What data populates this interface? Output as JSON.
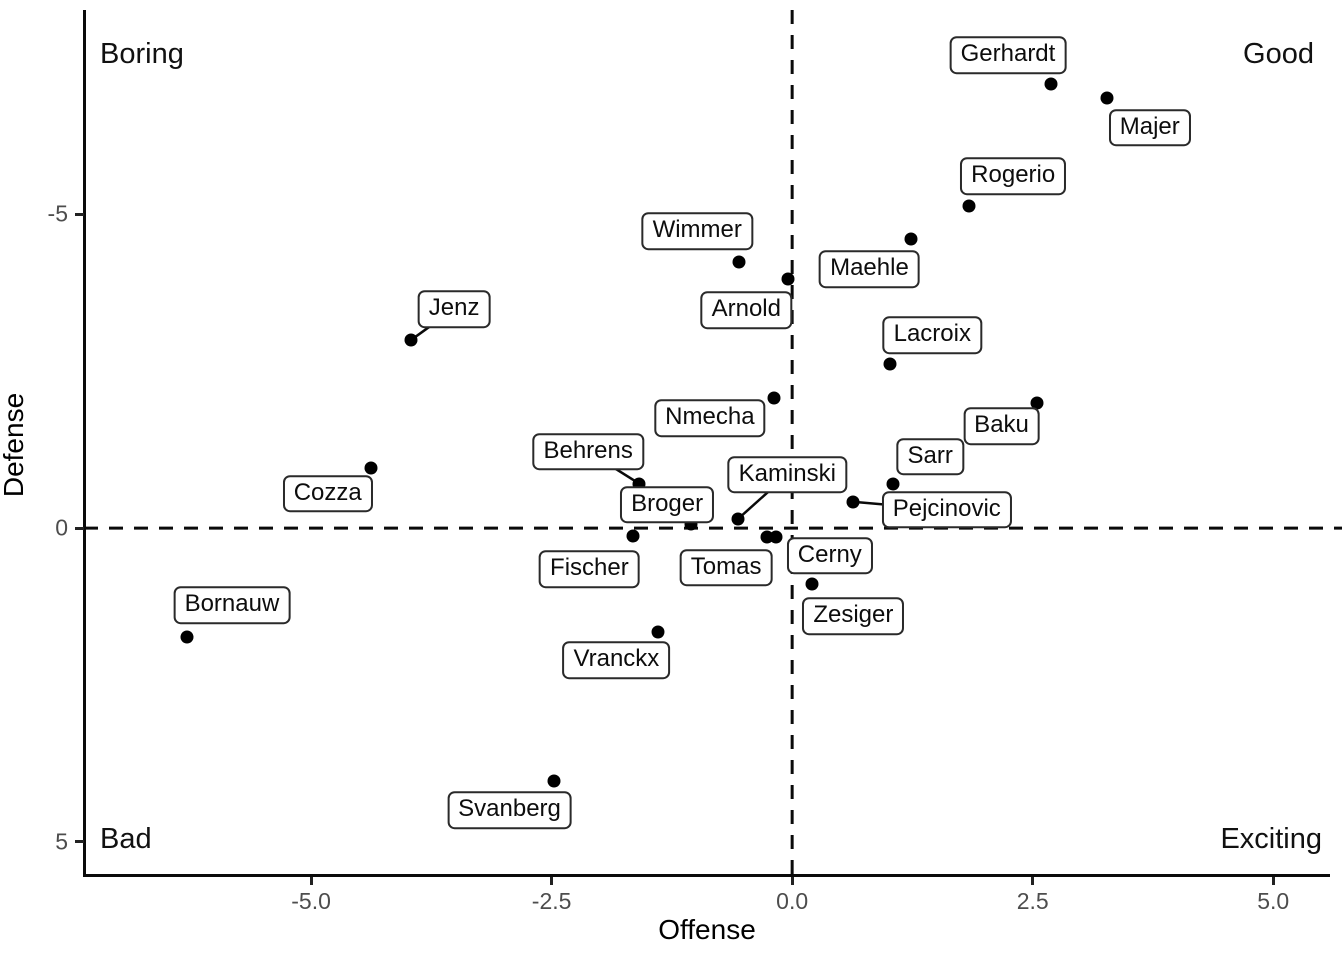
{
  "chart_data": {
    "type": "scatter",
    "title": "",
    "xlabel": "Offense",
    "ylabel": "Defense",
    "x_ticks": [
      {
        "label": "-5.0",
        "value": -5.0
      },
      {
        "label": "-2.5",
        "value": -2.5
      },
      {
        "label": "0.0",
        "value": 0.0
      },
      {
        "label": "2.5",
        "value": 2.5
      },
      {
        "label": "5.0",
        "value": 5.0
      }
    ],
    "y_ticks": [
      {
        "label": "-5",
        "value": -5
      },
      {
        "label": "0",
        "value": 0
      },
      {
        "label": "5",
        "value": 5
      }
    ],
    "y_axis_reversed": true,
    "xlim": [
      -7.36,
      5.59
    ],
    "ylim": [
      -8.26,
      5.53
    ],
    "grid": false,
    "reference_lines": {
      "vertical_x": 0,
      "horizontal_y": 0,
      "style": "dashed"
    },
    "quadrant_labels": {
      "top_left": "Boring",
      "top_right": "Good",
      "bottom_left": "Bad",
      "bottom_right": "Exciting"
    },
    "point_color": "#000000",
    "label_border_color": "#2a2a2a",
    "tick_label_color": "#4d4d4d",
    "points": [
      {
        "name": "Gerhardt",
        "offense": 2.69,
        "defense": -7.08,
        "label_offset": [
          -43,
          -29
        ],
        "leader": false
      },
      {
        "name": "Majer",
        "offense": 3.27,
        "defense": -6.86,
        "label_offset": [
          43,
          30
        ],
        "leader": false
      },
      {
        "name": "Rogerio",
        "offense": 1.84,
        "defense": -5.13,
        "label_offset": [
          44,
          -30
        ],
        "leader": false
      },
      {
        "name": "Wimmer",
        "offense": -0.55,
        "defense": -4.24,
        "label_offset": [
          -42,
          -31
        ],
        "leader": false
      },
      {
        "name": "Maehle",
        "offense": 1.24,
        "defense": -4.61,
        "label_offset": [
          -42,
          30
        ],
        "leader": false
      },
      {
        "name": "Arnold",
        "offense": -0.04,
        "defense": -3.97,
        "label_offset": [
          -42,
          31
        ],
        "leader": false
      },
      {
        "name": "Jenz",
        "offense": -3.96,
        "defense": -3.0,
        "label_offset": [
          43,
          -31
        ],
        "leader": true
      },
      {
        "name": "Lacroix",
        "offense": 1.02,
        "defense": -2.61,
        "label_offset": [
          42,
          -29
        ],
        "leader": false
      },
      {
        "name": "Nmecha",
        "offense": -0.19,
        "defense": -2.07,
        "label_offset": [
          -64,
          20
        ],
        "leader": false
      },
      {
        "name": "Baku",
        "offense": 2.54,
        "defense": -1.99,
        "label_offset": [
          -35,
          23
        ],
        "leader": false
      },
      {
        "name": "Behrens",
        "offense": -1.59,
        "defense": -0.71,
        "label_offset": [
          -51,
          -32
        ],
        "leader": true
      },
      {
        "name": "Cozza",
        "offense": -4.38,
        "defense": -0.96,
        "label_offset": [
          -43,
          26
        ],
        "leader": false
      },
      {
        "name": "Kaminski",
        "offense": -0.56,
        "defense": -0.15,
        "label_offset": [
          49,
          -44
        ],
        "leader": true
      },
      {
        "name": "Sarr",
        "offense": 1.05,
        "defense": -0.71,
        "label_offset": [
          37,
          -27
        ],
        "leader": false
      },
      {
        "name": "Pejcinovic",
        "offense": 0.63,
        "defense": -0.42,
        "label_offset": [
          94,
          8
        ],
        "leader": true
      },
      {
        "name": "Broger",
        "offense": -1.05,
        "defense": -0.07,
        "label_offset": [
          -24,
          -19
        ],
        "leader": false
      },
      {
        "name": "Fischer",
        "offense": -1.65,
        "defense": 0.13,
        "label_offset": [
          -44,
          33
        ],
        "leader": false
      },
      {
        "name": "Tomas",
        "offense": -0.26,
        "defense": 0.14,
        "label_offset": [
          -41,
          31
        ],
        "leader": false
      },
      {
        "name": "Cerny",
        "offense": -0.17,
        "defense": 0.14,
        "label_offset": [
          54,
          19
        ],
        "leader": false
      },
      {
        "name": "Zesiger",
        "offense": 0.21,
        "defense": 0.89,
        "label_offset": [
          41,
          32
        ],
        "leader": false
      },
      {
        "name": "Bornauw",
        "offense": -6.29,
        "defense": 1.74,
        "label_offset": [
          45,
          -32
        ],
        "leader": false
      },
      {
        "name": "Vranckx",
        "offense": -1.39,
        "defense": 1.66,
        "label_offset": [
          -42,
          28
        ],
        "leader": false
      },
      {
        "name": "Svanberg",
        "offense": -2.48,
        "defense": 4.03,
        "label_offset": [
          -44,
          29
        ],
        "leader": false
      }
    ]
  }
}
